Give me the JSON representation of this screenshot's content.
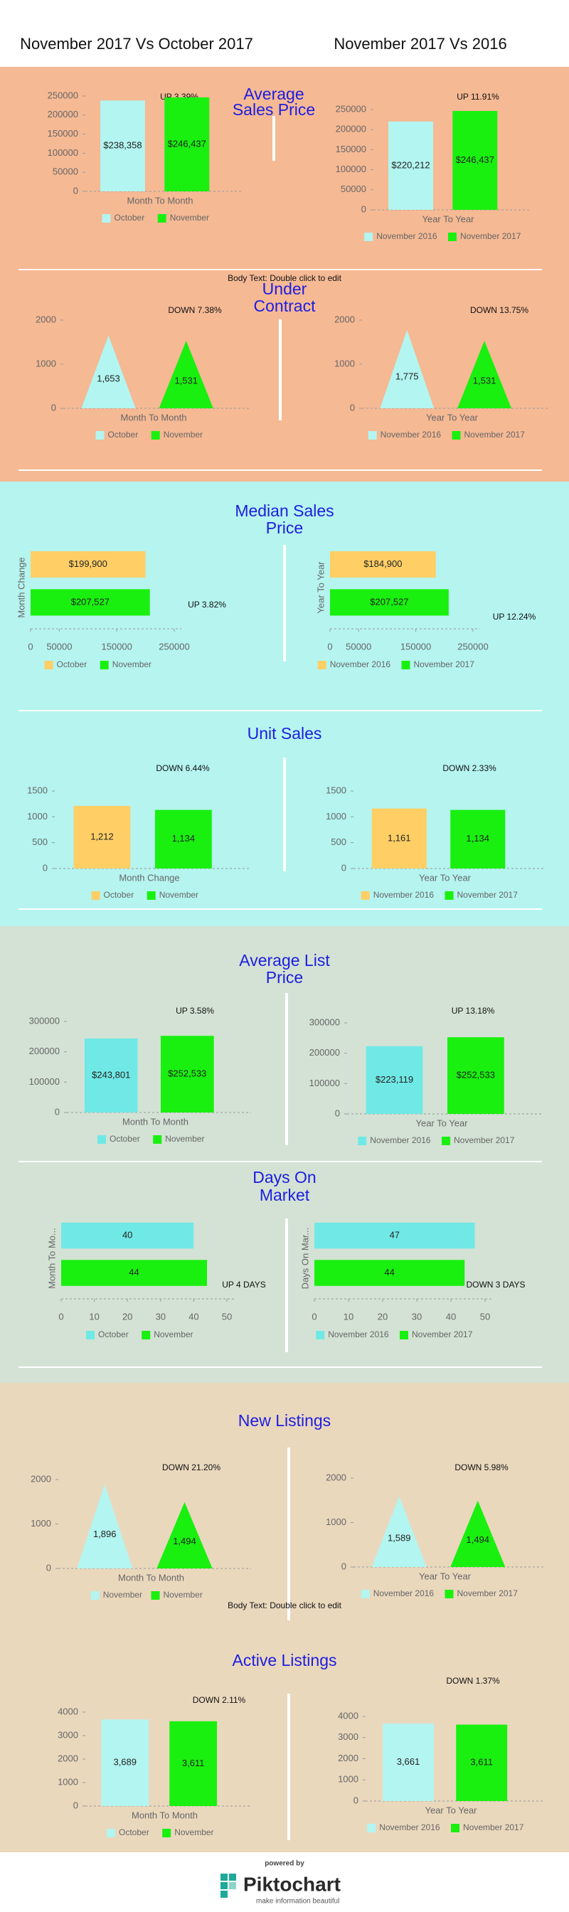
{
  "header": {
    "left": "November 2017 Vs October 2017",
    "right": "November 2017 Vs 2016"
  },
  "sections": [
    {
      "title": [
        "Average",
        "Sales Price"
      ]
    },
    {
      "title": [
        "Under",
        "Contract"
      ]
    },
    {
      "title": [
        "Median Sales",
        "Price"
      ]
    },
    {
      "title": [
        "Unit Sales"
      ]
    },
    {
      "title": [
        "Average List",
        "Price"
      ]
    },
    {
      "title": [
        "Days On",
        "Market"
      ]
    },
    {
      "title": [
        "New Listings"
      ]
    },
    {
      "title": [
        "Active Listings"
      ]
    }
  ],
  "body_texts": [
    "Body Text: Double click to edit",
    "Body Text: Double click to edit"
  ],
  "footer": {
    "powered_by": "powered by",
    "brand": "Piktochart",
    "tagline": "make information beautiful"
  },
  "chart_data": [
    {
      "type": "bar",
      "annotation": "UP 3.39%",
      "categories": [
        "Month To Month"
      ],
      "series": [
        {
          "name": "October",
          "color": "#b3f5f0",
          "values": [
            238358
          ],
          "value_labels": [
            "$238,358"
          ]
        },
        {
          "name": "November",
          "color": "#19f00f",
          "values": [
            246437
          ],
          "value_labels": [
            "$246,437"
          ]
        }
      ],
      "ylim": [
        0,
        250000
      ],
      "yticks": [
        0,
        50000,
        100000,
        150000,
        200000,
        250000
      ]
    },
    {
      "type": "bar",
      "annotation": "UP 11.91%",
      "categories": [
        "Year To Year"
      ],
      "series": [
        {
          "name": "November 2016",
          "color": "#b3f5f0",
          "values": [
            220212
          ],
          "value_labels": [
            "$220,212"
          ]
        },
        {
          "name": "November 2017",
          "color": "#19f00f",
          "values": [
            246437
          ],
          "value_labels": [
            "$246,437"
          ]
        }
      ],
      "ylim": [
        0,
        250000
      ],
      "yticks": [
        0,
        50000,
        100000,
        150000,
        200000,
        250000
      ]
    },
    {
      "type": "pyramid",
      "annotation": "DOWN 7.38%",
      "categories": [
        "Month To Month"
      ],
      "series": [
        {
          "name": "October",
          "color": "#b3f5f0",
          "values": [
            1653
          ],
          "value_labels": [
            "1,653"
          ]
        },
        {
          "name": "November",
          "color": "#19f00f",
          "values": [
            1531
          ],
          "value_labels": [
            "1,531"
          ]
        }
      ],
      "ylim": [
        0,
        2000
      ],
      "yticks": [
        0,
        1000,
        2000
      ]
    },
    {
      "type": "pyramid",
      "annotation": "DOWN 13.75%",
      "categories": [
        "Year To Year"
      ],
      "series": [
        {
          "name": "November 2016",
          "color": "#b3f5f0",
          "values": [
            1775
          ],
          "value_labels": [
            "1,775"
          ]
        },
        {
          "name": "November 2017",
          "color": "#19f00f",
          "values": [
            1531
          ],
          "value_labels": [
            "1,531"
          ]
        }
      ],
      "ylim": [
        0,
        2000
      ],
      "yticks": [
        0,
        1000,
        2000
      ]
    },
    {
      "type": "barh",
      "annotation": "UP 3.82%",
      "categories": [
        "Month Change"
      ],
      "series": [
        {
          "name": "October",
          "color": "#ffcf66",
          "values": [
            199900
          ],
          "value_labels": [
            "$199,900"
          ]
        },
        {
          "name": "November",
          "color": "#19f00f",
          "values": [
            207527
          ],
          "value_labels": [
            "$207,527"
          ]
        }
      ],
      "xlim": [
        0,
        250000
      ],
      "xticks": [
        0,
        50000,
        150000,
        250000
      ]
    },
    {
      "type": "barh",
      "annotation": "UP 12.24%",
      "categories": [
        "Year To Year"
      ],
      "series": [
        {
          "name": "November 2016",
          "color": "#ffcf66",
          "values": [
            184900
          ],
          "value_labels": [
            "$184,900"
          ]
        },
        {
          "name": "November 2017",
          "color": "#19f00f",
          "values": [
            207527
          ],
          "value_labels": [
            "$207,527"
          ]
        }
      ],
      "xlim": [
        0,
        250000
      ],
      "xticks": [
        0,
        50000,
        150000,
        250000
      ]
    },
    {
      "type": "bar",
      "annotation": "DOWN 6.44%",
      "categories": [
        "Month Change"
      ],
      "series": [
        {
          "name": "October",
          "color": "#ffcf66",
          "values": [
            1212
          ],
          "value_labels": [
            "1,212"
          ]
        },
        {
          "name": "November",
          "color": "#19f00f",
          "values": [
            1134
          ],
          "value_labels": [
            "1,134"
          ]
        }
      ],
      "ylim": [
        0,
        1500
      ],
      "yticks": [
        0,
        500,
        1000,
        1500
      ]
    },
    {
      "type": "bar",
      "annotation": "DOWN 2.33%",
      "categories": [
        "Year To Year"
      ],
      "series": [
        {
          "name": "November 2016",
          "color": "#ffcf66",
          "values": [
            1161
          ],
          "value_labels": [
            "1,161"
          ]
        },
        {
          "name": "November 2017",
          "color": "#19f00f",
          "values": [
            1134
          ],
          "value_labels": [
            "1,134"
          ]
        }
      ],
      "ylim": [
        0,
        1500
      ],
      "yticks": [
        0,
        500,
        1000,
        1500
      ]
    },
    {
      "type": "bar",
      "annotation": "UP 3.58%",
      "categories": [
        "Month To Month"
      ],
      "series": [
        {
          "name": "October",
          "color": "#70e9e6",
          "values": [
            243801
          ],
          "value_labels": [
            "$243,801"
          ]
        },
        {
          "name": "November",
          "color": "#19f00f",
          "values": [
            252533
          ],
          "value_labels": [
            "$252,533"
          ]
        }
      ],
      "ylim": [
        0,
        300000
      ],
      "yticks": [
        0,
        100000,
        200000,
        300000
      ]
    },
    {
      "type": "bar",
      "annotation": "UP 13.18%",
      "categories": [
        "Year To Year"
      ],
      "series": [
        {
          "name": "November 2016",
          "color": "#70e9e6",
          "values": [
            223119
          ],
          "value_labels": [
            "$223,119"
          ]
        },
        {
          "name": "November 2017",
          "color": "#19f00f",
          "values": [
            252533
          ],
          "value_labels": [
            "$252,533"
          ]
        }
      ],
      "ylim": [
        0,
        300000
      ],
      "yticks": [
        0,
        100000,
        200000,
        300000
      ]
    },
    {
      "type": "barh",
      "annotation": "UP 4 DAYS",
      "categories": [
        "Month To Mo..."
      ],
      "series": [
        {
          "name": "October",
          "color": "#70e9e6",
          "values": [
            40
          ]
        },
        {
          "name": "November",
          "color": "#19f00f",
          "values": [
            44
          ]
        }
      ],
      "xlim": [
        0,
        50
      ],
      "xticks": [
        0,
        10,
        20,
        30,
        40,
        50
      ]
    },
    {
      "type": "barh",
      "annotation": "DOWN 3 DAYS",
      "categories": [
        "Days On Mar..."
      ],
      "series": [
        {
          "name": "November 2016",
          "color": "#70e9e6",
          "values": [
            47
          ]
        },
        {
          "name": "November 2017",
          "color": "#19f00f",
          "values": [
            44
          ]
        }
      ],
      "xlim": [
        0,
        50
      ],
      "xticks": [
        0,
        10,
        20,
        30,
        40,
        50
      ]
    },
    {
      "type": "pyramid",
      "annotation": "DOWN 21.20%",
      "categories": [
        "Month To Month"
      ],
      "series": [
        {
          "name": "November",
          "color": "#b3f5f0",
          "values": [
            1896
          ],
          "value_labels": [
            "1,896"
          ]
        },
        {
          "name": "November",
          "color": "#19f00f",
          "values": [
            1494
          ],
          "value_labels": [
            "1,494"
          ]
        }
      ],
      "ylim": [
        0,
        2000
      ],
      "yticks": [
        0,
        1000,
        2000
      ]
    },
    {
      "type": "pyramid",
      "annotation": "DOWN 5.98%",
      "categories": [
        "Year To Year"
      ],
      "series": [
        {
          "name": "November 2016",
          "color": "#b3f5f0",
          "values": [
            1589
          ],
          "value_labels": [
            "1,589"
          ]
        },
        {
          "name": "November 2017",
          "color": "#19f00f",
          "values": [
            1494
          ],
          "value_labels": [
            "1,494"
          ]
        }
      ],
      "ylim": [
        0,
        2000
      ],
      "yticks": [
        0,
        1000,
        2000
      ]
    },
    {
      "type": "bar",
      "annotation": "DOWN 2.11%",
      "categories": [
        "Month To Month"
      ],
      "series": [
        {
          "name": "October",
          "color": "#b3f5f0",
          "values": [
            3689
          ],
          "value_labels": [
            "3,689"
          ]
        },
        {
          "name": "November",
          "color": "#19f00f",
          "values": [
            3611
          ],
          "value_labels": [
            "3,611"
          ]
        }
      ],
      "ylim": [
        0,
        4000
      ],
      "yticks": [
        0,
        1000,
        2000,
        3000,
        4000
      ]
    },
    {
      "type": "bar",
      "annotation": "DOWN 1.37%",
      "categories": [
        "Year To Year"
      ],
      "series": [
        {
          "name": "November 2016",
          "color": "#b3f5f0",
          "values": [
            3661
          ],
          "value_labels": [
            "3,661"
          ]
        },
        {
          "name": "November 2017",
          "color": "#19f00f",
          "values": [
            3611
          ],
          "value_labels": [
            "3,611"
          ]
        }
      ],
      "ylim": [
        0,
        4000
      ],
      "yticks": [
        0,
        1000,
        2000,
        3000,
        4000
      ]
    }
  ]
}
